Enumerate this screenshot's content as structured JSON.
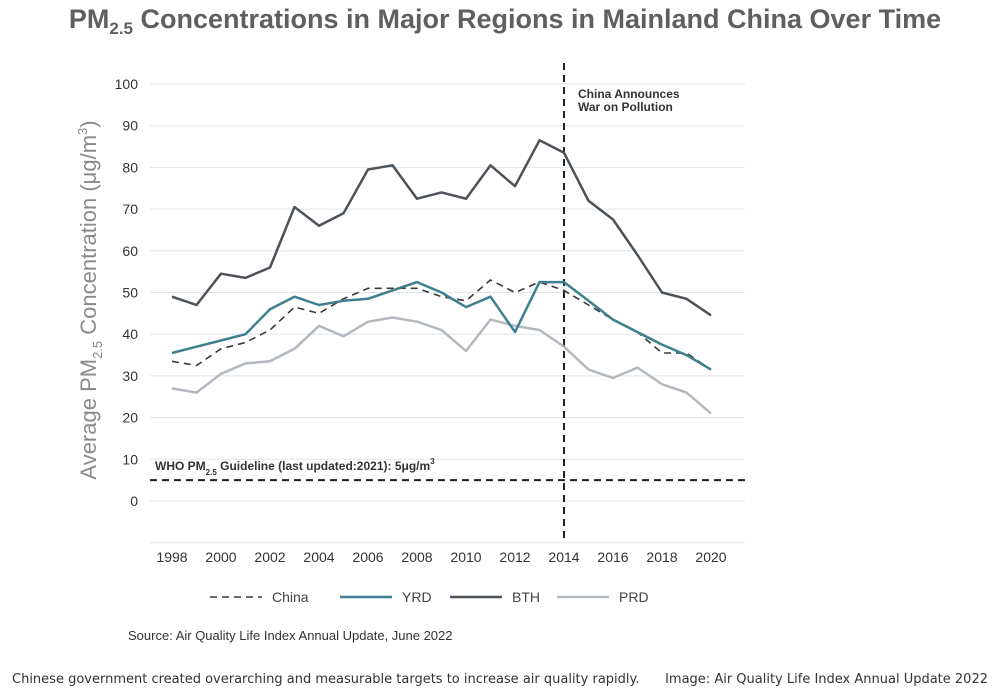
{
  "title": {
    "main": "PM",
    "sub": "2.5",
    "rest": " Concentrations in Major Regions in Mainland China Over Time"
  },
  "source": "Source: Air Quality Life Index Annual Update, June 2022",
  "caption": {
    "left": "Chinese government created overarching and measurable targets to increase air quality rapidly.",
    "right": "Image: Air Quality Life Index Annual Update 2022"
  },
  "colors": {
    "China": "#3a3a3a",
    "YRD": "#3e7f91",
    "BTH": "#4d5259",
    "PRD": "#b3b9bf",
    "grid": "#dde6ea"
  },
  "chart_data": {
    "type": "line",
    "title": "PM2.5 Concentrations in Major Regions in Mainland China Over Time",
    "ylabel": {
      "pre": "Average PM",
      "sub": "2.5",
      "mid": "  Concentration  (μg/m",
      "sup": "3",
      "post": ")"
    },
    "xlabel": "",
    "ylim": [
      -10,
      100
    ],
    "xlim": [
      1998,
      2020
    ],
    "yticks": [
      0,
      10,
      20,
      30,
      40,
      50,
      60,
      70,
      80,
      90,
      100
    ],
    "xticks": [
      1998,
      2000,
      2002,
      2004,
      2006,
      2008,
      2010,
      2012,
      2014,
      2016,
      2018,
      2020
    ],
    "grid": "horizontal",
    "x": [
      1998,
      1999,
      2000,
      2001,
      2002,
      2003,
      2004,
      2005,
      2006,
      2007,
      2008,
      2009,
      2010,
      2011,
      2012,
      2013,
      2014,
      2015,
      2016,
      2017,
      2018,
      2019,
      2020
    ],
    "series": [
      {
        "name": "China",
        "style": "dashed",
        "values": [
          33.5,
          32.5,
          36.5,
          38,
          41,
          46.5,
          45,
          48.5,
          51,
          51,
          51,
          49,
          48,
          53,
          50,
          52.5,
          50.5,
          47,
          43.5,
          40.5,
          35.5,
          35.5,
          31.5
        ]
      },
      {
        "name": "YRD",
        "style": "solid",
        "values": [
          35.5,
          37,
          38.5,
          40,
          46,
          49,
          47,
          48,
          48.5,
          50.5,
          52.5,
          50,
          46.5,
          49,
          40.5,
          52.5,
          52.5,
          48,
          43.5,
          40.5,
          37.5,
          35,
          31.5
        ]
      },
      {
        "name": "BTH",
        "style": "solid",
        "values": [
          49,
          47,
          54.5,
          53.5,
          56,
          70.5,
          66,
          69,
          79.5,
          80.5,
          72.5,
          74,
          72.5,
          80.5,
          75.5,
          86.5,
          83.5,
          72,
          67.5,
          59,
          50,
          48.5,
          44.5
        ]
      },
      {
        "name": "PRD",
        "style": "solid",
        "values": [
          27,
          26,
          30.5,
          33,
          33.5,
          36.5,
          42,
          39.5,
          43,
          44,
          43,
          41,
          36,
          43.5,
          42,
          41,
          37,
          31.5,
          29.5,
          32,
          28,
          26,
          21
        ]
      }
    ],
    "annotations": {
      "event": {
        "x": 2014,
        "line1": "China Announces",
        "line2": "War on Pollution"
      },
      "guideline": {
        "y": 5,
        "pre": "WHO PM",
        "sub": "2.5",
        "post": " Guideline (last updated:2021): 5μg/m",
        "sup": "3"
      }
    },
    "legend": [
      "China",
      "YRD",
      "BTH",
      "PRD"
    ]
  }
}
